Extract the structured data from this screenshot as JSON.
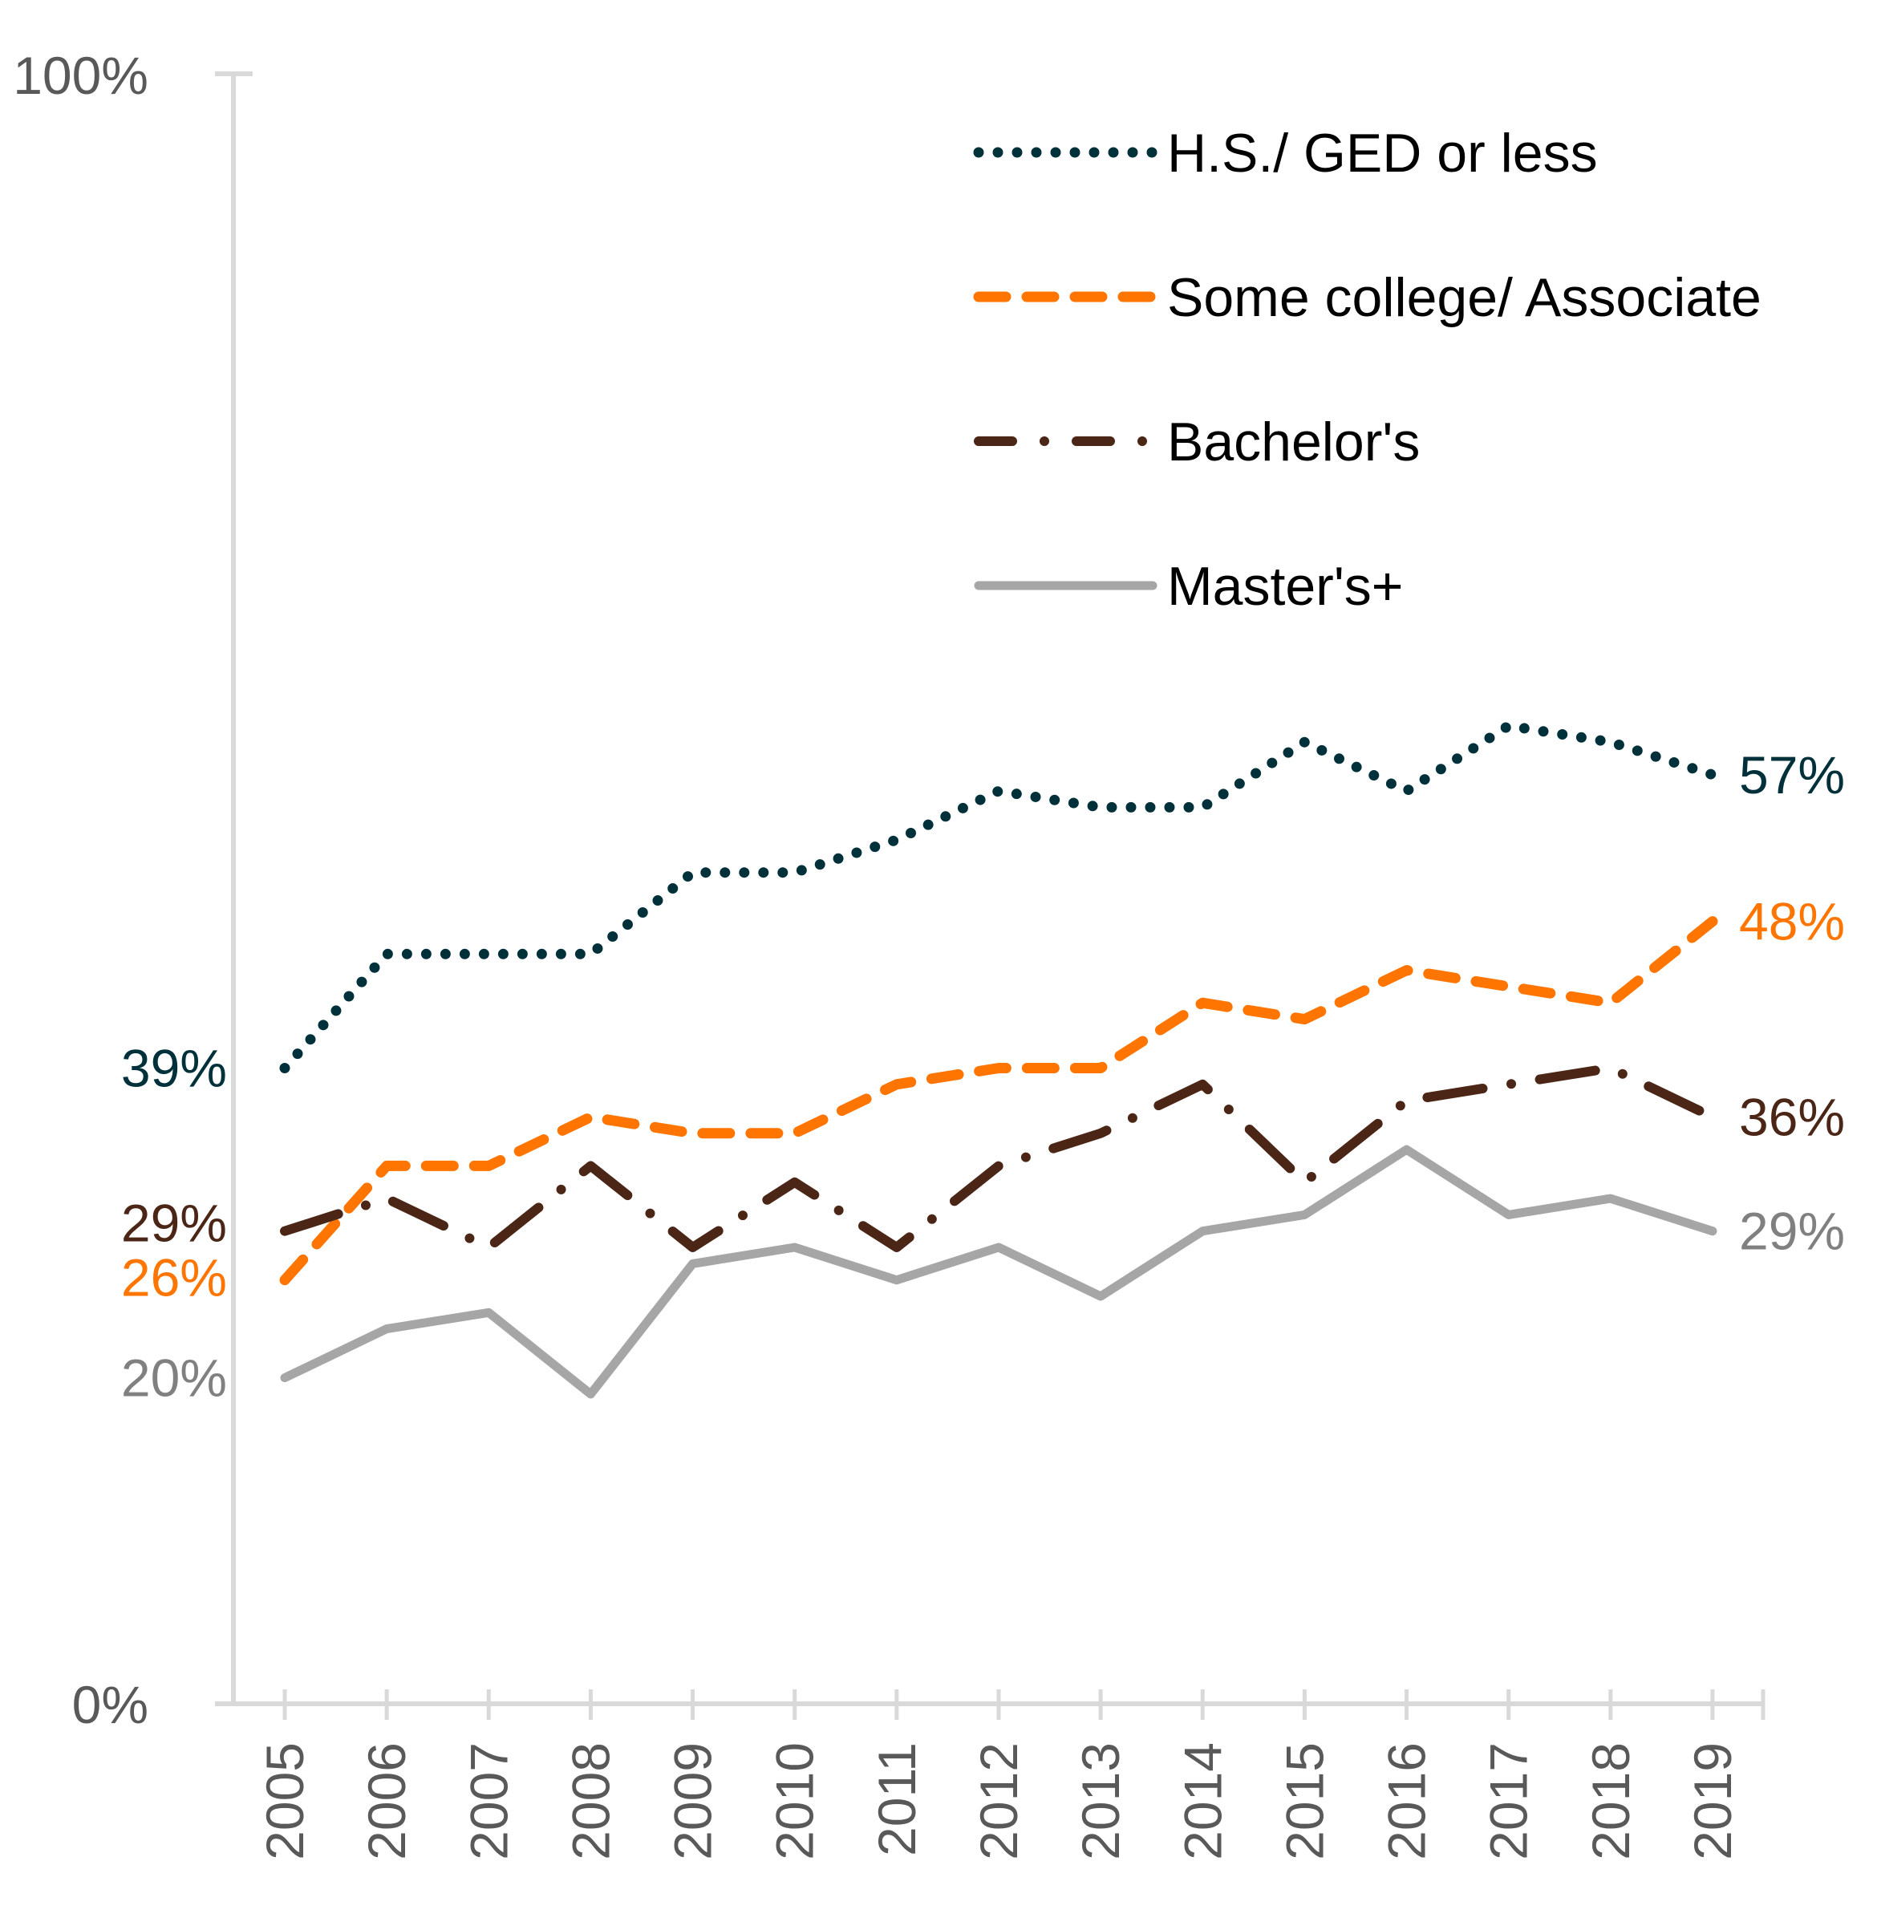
{
  "chart_data": {
    "type": "line",
    "title": "",
    "xlabel": "",
    "ylabel": "",
    "ylim": [
      0,
      100
    ],
    "y_ticks": [
      "0%",
      "100%"
    ],
    "grid": false,
    "legend_position": "top-right",
    "categories": [
      "2005",
      "2006",
      "2007",
      "2008",
      "2009",
      "2010",
      "2011",
      "2012",
      "2013",
      "2014",
      "2015",
      "2016",
      "2017",
      "2018",
      "2019"
    ],
    "series": [
      {
        "name": "H.S./ GED or less",
        "style": "dotted",
        "color": "#00313A",
        "label_color": "#00313A",
        "values": [
          39,
          46,
          46,
          46,
          51,
          51,
          53,
          56,
          55,
          55,
          59,
          56,
          60,
          59,
          57
        ],
        "start_label": "39%",
        "end_label": "57%"
      },
      {
        "name": "Some college/ Associate",
        "style": "dashed",
        "color": "#FF7500",
        "label_color": "#FF7500",
        "values": [
          26,
          33,
          33,
          36,
          35,
          35,
          38,
          39,
          39,
          43,
          42,
          45,
          44,
          43,
          48
        ],
        "start_label": "26%",
        "end_label": "48%"
      },
      {
        "name": "Bachelor's",
        "style": "dash-dot",
        "color": "#4B2616",
        "label_color": "#4B2616",
        "values": [
          29,
          31,
          28,
          33,
          28,
          32,
          28,
          33,
          35,
          38,
          32,
          37,
          38,
          39,
          36
        ],
        "start_label": "29%",
        "end_label": "36%"
      },
      {
        "name": "Master's+",
        "style": "solid",
        "color": "#A6A6A6",
        "label_color": "#808080",
        "values": [
          20,
          23,
          24,
          19,
          27,
          28,
          26,
          28,
          25,
          29,
          30,
          34,
          30,
          31,
          29
        ],
        "start_label": "20%",
        "end_label": "29%"
      }
    ],
    "axis_color": "#D9D9D9",
    "tick_label_color": "#595959"
  }
}
